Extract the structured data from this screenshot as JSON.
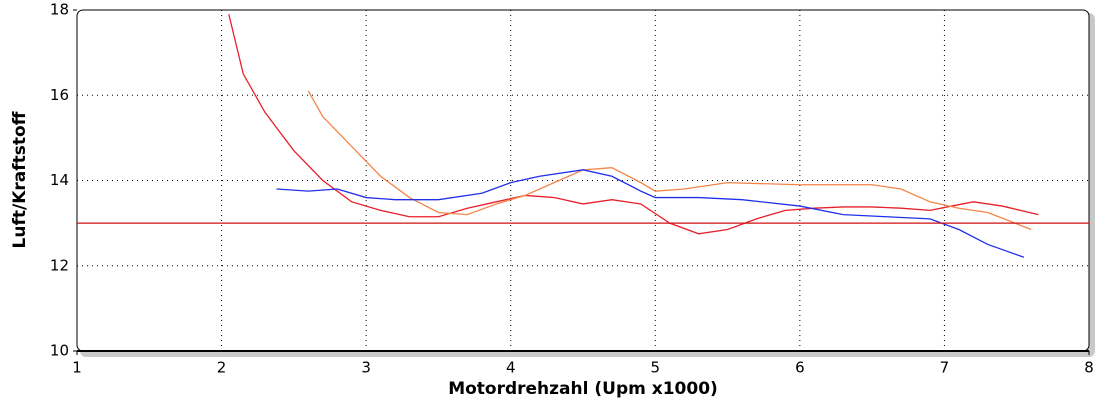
{
  "chart_data": {
    "type": "line",
    "x_label": "Motordrehzahl (Upm x1000)",
    "y_label": "Luft/Kraftstoff",
    "xlim": [
      1,
      8
    ],
    "xticks": [
      1,
      2,
      3,
      4,
      5,
      6,
      7,
      8
    ],
    "ylim": [
      10,
      18
    ],
    "yticks": [
      10,
      12,
      14,
      16,
      18
    ],
    "grid": true,
    "series": [
      {
        "color": "#e8202a",
        "x": [
          2.05,
          2.15,
          2.3,
          2.5,
          2.7,
          2.9,
          3.1,
          3.3,
          3.5,
          3.7,
          3.9,
          4.1,
          4.3,
          4.5,
          4.7,
          4.9,
          5.1,
          5.3,
          5.5,
          5.7,
          5.9,
          6.1,
          6.3,
          6.5,
          6.7,
          6.9,
          7.05,
          7.2,
          7.4,
          7.65
        ],
        "values": [
          17.9,
          16.5,
          15.6,
          14.7,
          14.0,
          13.5,
          13.3,
          13.15,
          13.15,
          13.35,
          13.5,
          13.65,
          13.6,
          13.45,
          13.55,
          13.45,
          13.0,
          12.75,
          12.85,
          13.1,
          13.3,
          13.35,
          13.38,
          13.38,
          13.35,
          13.3,
          13.4,
          13.5,
          13.4,
          13.2
        ]
      },
      {
        "color": "#f4844a",
        "x": [
          2.6,
          2.7,
          2.9,
          3.1,
          3.3,
          3.5,
          3.7,
          3.9,
          4.1,
          4.3,
          4.5,
          4.7,
          4.9,
          5.0,
          5.2,
          5.5,
          6.0,
          6.5,
          6.7,
          6.9,
          7.1,
          7.3,
          7.6
        ],
        "values": [
          16.1,
          15.5,
          14.8,
          14.1,
          13.6,
          13.25,
          13.2,
          13.45,
          13.65,
          13.95,
          14.25,
          14.3,
          13.95,
          13.75,
          13.8,
          13.95,
          13.9,
          13.9,
          13.8,
          13.5,
          13.35,
          13.25,
          12.85
        ]
      },
      {
        "color": "#2030e8",
        "x": [
          2.38,
          2.6,
          2.8,
          3.0,
          3.2,
          3.5,
          3.8,
          4.0,
          4.2,
          4.5,
          4.7,
          4.9,
          5.0,
          5.3,
          5.6,
          6.0,
          6.3,
          6.6,
          6.9,
          7.1,
          7.3,
          7.55
        ],
        "values": [
          13.8,
          13.75,
          13.8,
          13.6,
          13.55,
          13.55,
          13.7,
          13.95,
          14.1,
          14.25,
          14.1,
          13.75,
          13.6,
          13.6,
          13.55,
          13.4,
          13.2,
          13.15,
          13.1,
          12.85,
          12.5,
          12.2
        ]
      },
      {
        "color": "#d01010",
        "x": [
          1,
          8
        ],
        "values": [
          13,
          13
        ]
      }
    ]
  }
}
